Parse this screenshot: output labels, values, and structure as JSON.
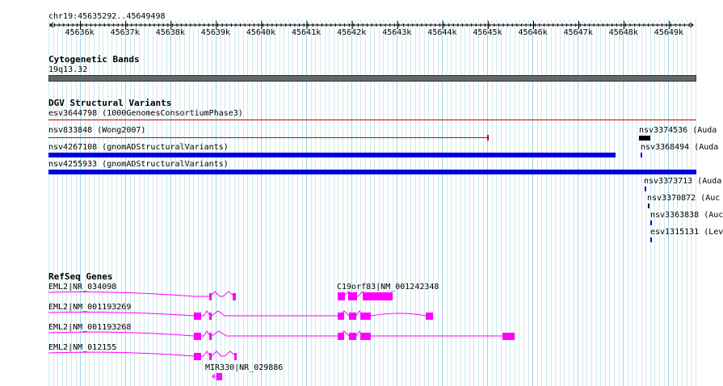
{
  "ruler": {
    "location": "chr19:45635292..45649498",
    "ticks": [
      "45636k",
      "45637k",
      "45638k",
      "45639k",
      "45640k",
      "45641k",
      "45642k",
      "45643k",
      "45644k",
      "45645k",
      "45646k",
      "45647k",
      "45648k",
      "45649k"
    ]
  },
  "tracks": {
    "cytobands": {
      "title": "Cytogenetic Bands",
      "band_label": "19q13.32"
    },
    "dgv": {
      "title": "DGV Structural Variants",
      "features": [
        {
          "label": "esv3644798 (1000GenomesConsortiumPhase3)",
          "color": "#cc0000"
        },
        {
          "label": "nsv833848 (Wong2007)",
          "color": "#cc0000"
        },
        {
          "label": "nsv4267108 (gnomADStructuralVariants)",
          "color": "#0000dd"
        },
        {
          "label": "nsv4255933 (gnomADStructuralVariants)",
          "color": "#0000dd"
        },
        {
          "label": "nsv3374536 (Auda",
          "color": "#000000"
        },
        {
          "label": "nsv3368494 (Auda",
          "color": "#0000dd"
        },
        {
          "label": "nsv3373713 (Auda",
          "color": "#0000dd"
        },
        {
          "label": "nsv3370872 (Auc",
          "color": "#000000"
        },
        {
          "label": "nsv3363838 (Auc",
          "color": "#0000dd"
        },
        {
          "label": "esv1315131 (Lev",
          "color": "#0000dd"
        }
      ]
    },
    "refseq": {
      "title": "RefSeq Genes",
      "color": "#ff00ff",
      "genes": [
        {
          "label": "EML2|NR_034098"
        },
        {
          "label": "C19orf83|NM_001242348"
        },
        {
          "label": "EML2|NM_001193269"
        },
        {
          "label": "EML2|NM_001193268"
        },
        {
          "label": "EML2|NM_012155"
        },
        {
          "label": "MIR330|NR_029886"
        }
      ]
    }
  }
}
